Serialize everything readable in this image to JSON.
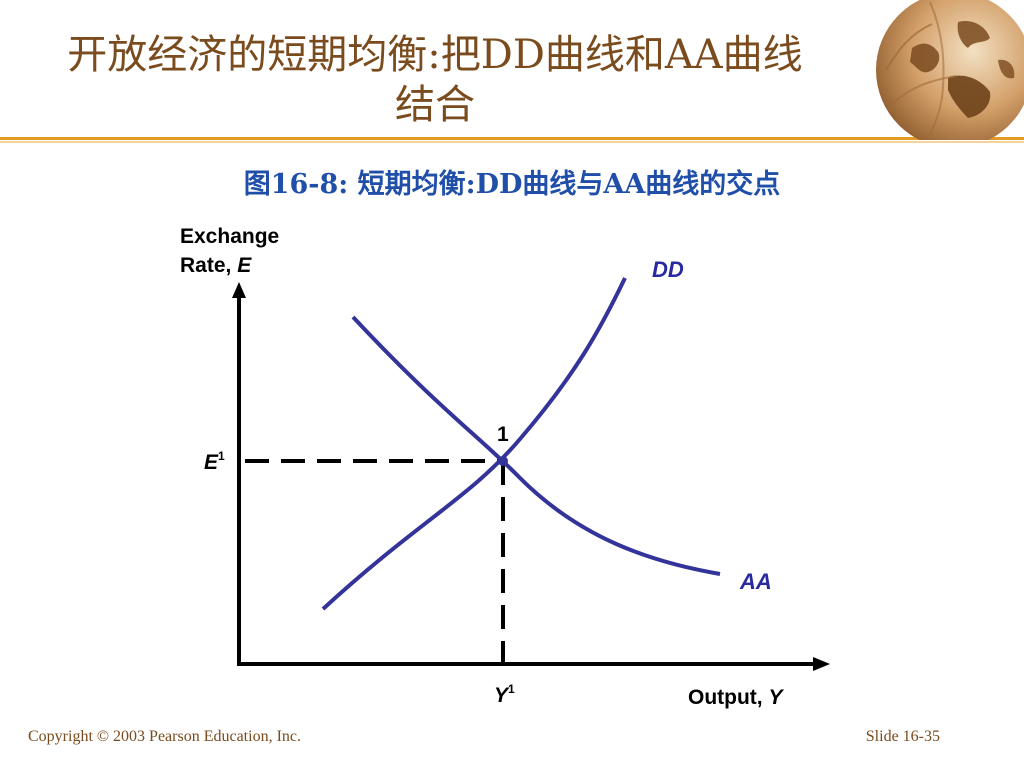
{
  "slide": {
    "title_line1": "开放经济的短期均衡:把DD曲线和AA曲线",
    "title_line2": "结合",
    "figure_caption": "图16-8: 短期均衡:DD曲线与AA曲线的交点"
  },
  "diagram": {
    "y_axis_label_line1": "Exchange",
    "y_axis_label_line2_prefix": "Rate, ",
    "y_axis_label_line2_var": "E",
    "x_axis_label_prefix": "Output, ",
    "x_axis_label_var": "Y",
    "dd_label": "DD",
    "aa_label": "AA",
    "equilibrium_point_label": "1",
    "e1_label_main": "E",
    "e1_label_sup": "1",
    "y1_label_main": "Y",
    "y1_label_sup": "1",
    "curve_color": "#33339a",
    "dd_label_color": "#2a2aa0"
  },
  "footer": {
    "copyright": "Copyright © 2003 Pearson Education, Inc.",
    "slide_number": "Slide 16-35"
  }
}
